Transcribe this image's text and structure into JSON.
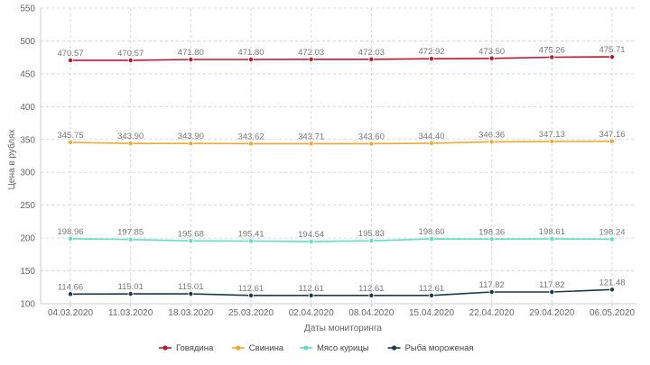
{
  "chart_data": {
    "type": "line",
    "title": "",
    "xlabel": "Даты мониторинга",
    "ylabel": "Цена в рублях",
    "ylim": [
      100,
      550
    ],
    "yticks": [
      100,
      150,
      200,
      250,
      300,
      350,
      400,
      450,
      500,
      550
    ],
    "grid": true,
    "legend_position": "bottom",
    "categories": [
      "04.03.2020",
      "11.03.2020",
      "18.03.2020",
      "25.03.2020",
      "02.04.2020",
      "08.04.2020",
      "15.04.2020",
      "22.04.2020",
      "29.04.2020",
      "06.05.2020"
    ],
    "series": [
      {
        "name": "Говядина",
        "color": "#c0152f",
        "values": [
          470.57,
          470.57,
          471.8,
          471.8,
          472.03,
          472.03,
          472.92,
          473.5,
          475.26,
          475.71
        ],
        "labels": [
          "470.57",
          "470.57",
          "471.80",
          "471.80",
          "472.03",
          "472.03",
          "472.92",
          "473.50",
          "475.26",
          "475.71"
        ]
      },
      {
        "name": "Свинина",
        "color": "#f0a830",
        "values": [
          345.75,
          343.9,
          343.9,
          343.62,
          343.71,
          343.6,
          344.4,
          346.36,
          347.13,
          347.16
        ],
        "labels": [
          "345.75",
          "343.90",
          "343.90",
          "343.62",
          "343.71",
          "343.60",
          "344.40",
          "346.36",
          "347.13",
          "347.16"
        ]
      },
      {
        "name": "Мясо курицы",
        "color": "#5ce0c8",
        "values": [
          198.96,
          197.85,
          195.68,
          195.41,
          194.54,
          195.83,
          198.6,
          198.36,
          198.61,
          198.24
        ],
        "labels": [
          "198.96",
          "197.85",
          "195.68",
          "195.41",
          "194.54",
          "195.83",
          "198.60",
          "198.36",
          "198.61",
          "198.24"
        ]
      },
      {
        "name": "Рыба мороженая",
        "color": "#173a4f",
        "values": [
          114.66,
          115.01,
          115.01,
          112.61,
          112.61,
          112.61,
          112.61,
          117.82,
          117.82,
          121.48
        ],
        "labels": [
          "114.66",
          "115.01",
          "115.01",
          "112.61",
          "112.61",
          "112.61",
          "112.61",
          "117.82",
          "117.82",
          "121.48"
        ]
      }
    ]
  }
}
